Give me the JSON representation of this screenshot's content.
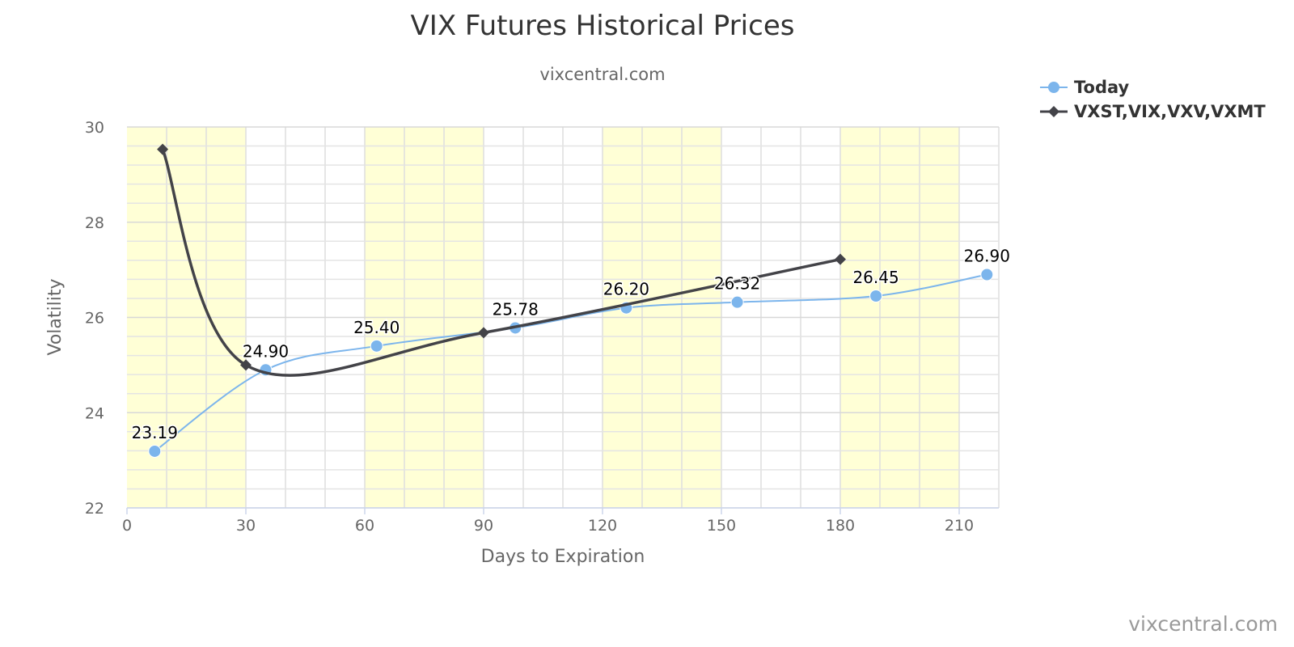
{
  "chart_data": {
    "type": "line",
    "title": "VIX Futures Historical Prices",
    "subtitle": "vixcentral.com",
    "credit": "vixcentral.com",
    "xlabel": "Days to Expiration",
    "ylabel": "Volatility",
    "xlim": [
      0,
      220
    ],
    "ylim": [
      22,
      30
    ],
    "x_ticks": [
      0,
      30,
      60,
      90,
      120,
      150,
      180,
      210
    ],
    "y_ticks": [
      22,
      24,
      26,
      28,
      30
    ],
    "grid": true,
    "legend_position": "top-right",
    "bands": [
      [
        0,
        30
      ],
      [
        60,
        90
      ],
      [
        120,
        150
      ],
      [
        180,
        210
      ]
    ],
    "band_color": "#ffffd6",
    "series": [
      {
        "name": "Today",
        "color": "#7cb5ec",
        "marker": "circle",
        "x": [
          7,
          35,
          63,
          98,
          126,
          154,
          189,
          217
        ],
        "values": [
          23.19,
          24.9,
          25.4,
          25.78,
          26.2,
          26.32,
          26.45,
          26.9
        ],
        "labels": [
          "23.19",
          "24.90",
          "25.40",
          "25.78",
          "26.20",
          "26.32",
          "26.45",
          "26.90"
        ]
      },
      {
        "name": "VXST,VIX,VXV,VXMT",
        "color": "#434348",
        "marker": "diamond",
        "x": [
          9,
          30,
          90,
          180
        ],
        "values": [
          29.53,
          25.0,
          25.68,
          27.22
        ]
      }
    ]
  }
}
